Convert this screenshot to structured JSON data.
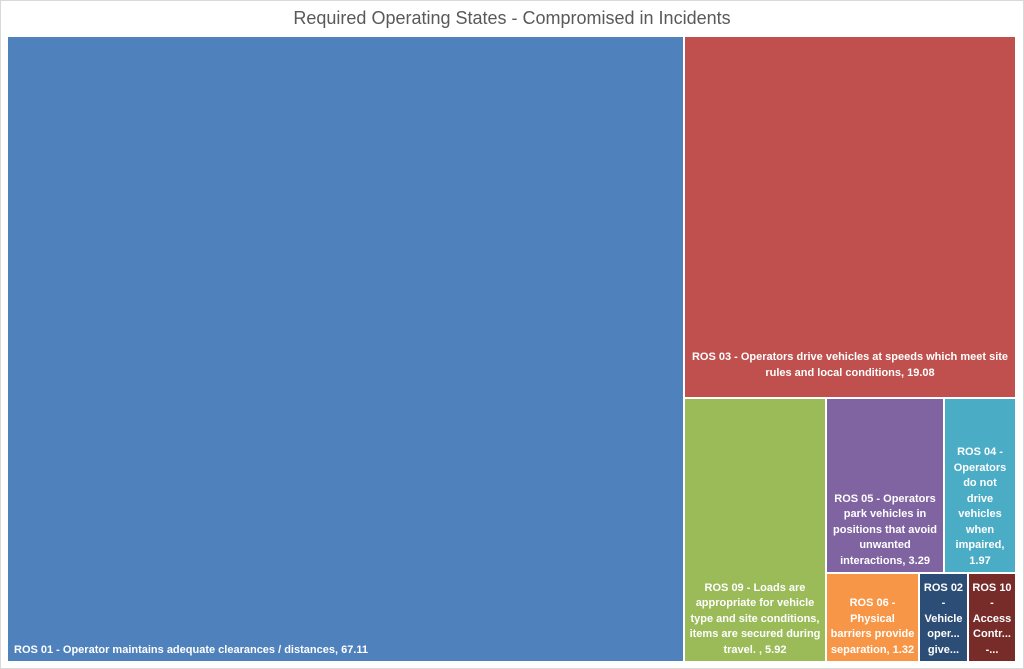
{
  "chart_data": {
    "type": "treemap",
    "title": "Required Operating States - Compromised in Incidents",
    "items": [
      {
        "label": "ROS 01 - Operator maintains adequate clearances / distances, 67.11",
        "value": 67.11,
        "color": "#4f81bd"
      },
      {
        "label": "ROS 03 - Operators drive vehicles at speeds which meet site\nrules and local conditions, 19.08",
        "value": 19.08,
        "color": "#c0504d"
      },
      {
        "label": "ROS 09 - Loads are\nappropriate for vehicle\ntype and site conditions,\nitems are secured during\ntravel. , 5.92",
        "value": 5.92,
        "color": "#9bbb59"
      },
      {
        "label": "ROS 05 - Operators\npark vehicles in\npositions that avoid\nunwanted\ninteractions, 3.29",
        "value": 3.29,
        "color": "#8064a2"
      },
      {
        "label": "ROS 04 -\nOperators\ndo not\ndrive\nvehicles\nwhen\nimpaired,\n1.97",
        "value": 1.97,
        "color": "#4bacc6"
      },
      {
        "label": "ROS 06 -\nPhysical\nbarriers provide\nseparation, 1.32",
        "value": 1.32,
        "color": "#f79646"
      },
      {
        "label": "ROS 02\n-\nVehicle\noper...\ngive...",
        "value": 0.66,
        "color": "#2c4d75"
      },
      {
        "label": "ROS 10\n-\nAccess\nContr...\n-...",
        "value": 0.65,
        "color": "#772c2a"
      }
    ]
  }
}
